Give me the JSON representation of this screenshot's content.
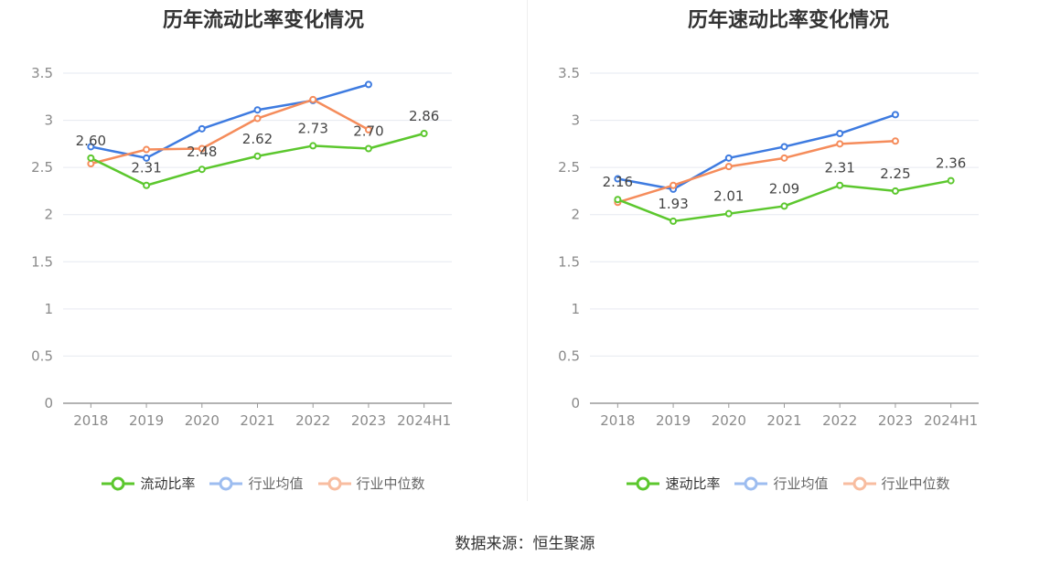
{
  "colors": {
    "main": "#5cc72e",
    "avg": "#3e7be0",
    "median": "#f58c5b",
    "grid": "#e6e9f0",
    "axis": "#9a9a9a",
    "tick_text": "#8a8a8a",
    "label_text": "#444444"
  },
  "source_text": "数据来源：恒生聚源",
  "chart_data": [
    {
      "type": "line",
      "title": "历年流动比率变化情况",
      "categories": [
        "2018",
        "2019",
        "2020",
        "2021",
        "2022",
        "2023",
        "2024H1"
      ],
      "ylim": [
        0,
        3.5
      ],
      "yticks": [
        "0",
        "0.5",
        "1",
        "1.5",
        "2",
        "2.5",
        "3",
        "3.5"
      ],
      "grid": true,
      "legend_position": "bottom",
      "series": [
        {
          "name": "流动比率",
          "key": "main",
          "values": [
            2.6,
            2.31,
            2.48,
            2.62,
            2.73,
            2.7,
            2.86
          ],
          "labels": [
            "2.60",
            "2.31",
            "2.48",
            "2.62",
            "2.73",
            "2.70",
            "2.86"
          ]
        },
        {
          "name": "行业均值",
          "key": "avg",
          "values": [
            2.72,
            2.6,
            2.91,
            3.11,
            3.21,
            3.38,
            null
          ]
        },
        {
          "name": "行业中位数",
          "key": "median",
          "values": [
            2.54,
            2.69,
            2.7,
            3.02,
            3.22,
            2.9,
            null
          ]
        }
      ]
    },
    {
      "type": "line",
      "title": "历年速动比率变化情况",
      "categories": [
        "2018",
        "2019",
        "2020",
        "2021",
        "2022",
        "2023",
        "2024H1"
      ],
      "ylim": [
        0,
        3.5
      ],
      "yticks": [
        "0",
        "0.5",
        "1",
        "1.5",
        "2",
        "2.5",
        "3",
        "3.5"
      ],
      "grid": true,
      "legend_position": "bottom",
      "series": [
        {
          "name": "速动比率",
          "key": "main",
          "values": [
            2.16,
            1.93,
            2.01,
            2.09,
            2.31,
            2.25,
            2.36
          ],
          "labels": [
            "2.16",
            "1.93",
            "2.01",
            "2.09",
            "2.31",
            "2.25",
            "2.36"
          ]
        },
        {
          "name": "行业均值",
          "key": "avg",
          "values": [
            2.38,
            2.27,
            2.6,
            2.72,
            2.86,
            3.06,
            null
          ]
        },
        {
          "name": "行业中位数",
          "key": "median",
          "values": [
            2.13,
            2.31,
            2.51,
            2.6,
            2.75,
            2.78,
            null
          ]
        }
      ]
    }
  ]
}
